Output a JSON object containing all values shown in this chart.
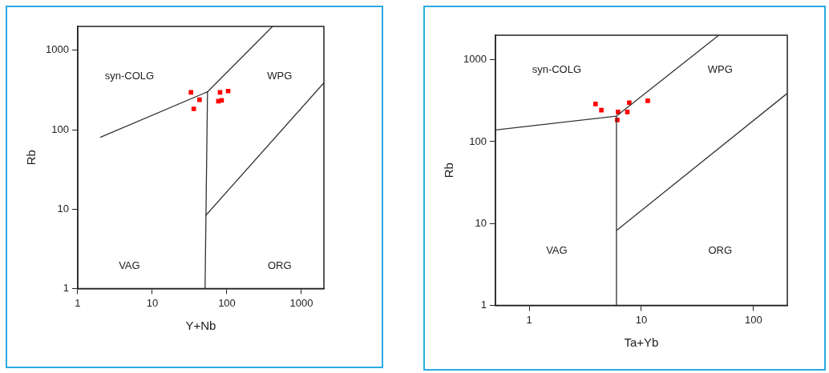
{
  "chart_data": [
    {
      "type": "scatter",
      "xlabel": "Y+Nb",
      "ylabel": "Rb",
      "log": "xy",
      "xlim": [
        1,
        2000
      ],
      "ylim": [
        1,
        2000
      ],
      "xticks": [
        1,
        10,
        100,
        1000
      ],
      "yticks": [
        1,
        10,
        100,
        1000
      ],
      "series": [
        {
          "type": "line",
          "color": "#333333",
          "x": [
            2,
            55,
            410
          ],
          "values": [
            80,
            300,
            2000
          ]
        },
        {
          "type": "line",
          "color": "#333333",
          "x": [
            55,
            51
          ],
          "values": [
            300,
            1
          ]
        },
        {
          "type": "line",
          "color": "#333333",
          "x": [
            52,
            2000
          ],
          "values": [
            8.3,
            390
          ]
        },
        {
          "type": "scatter",
          "marker": "square",
          "color": "#ff0000",
          "x": [
            33,
            43,
            36,
            81,
            77,
            85,
            104
          ],
          "values": [
            295,
            238,
            183,
            295,
            229,
            234,
            307
          ]
        }
      ],
      "annotations": [
        "syn-COLG",
        "WPG",
        "VAG",
        "ORG"
      ]
    },
    {
      "type": "scatter",
      "xlabel": "Ta+Yb",
      "ylabel": "Rb",
      "log": "xy",
      "xlim": [
        0.5,
        200
      ],
      "ylim": [
        1,
        2000
      ],
      "xticks": [
        1,
        10,
        100
      ],
      "yticks": [
        1,
        10,
        100,
        1000
      ],
      "series": [
        {
          "type": "line",
          "color": "#333333",
          "x": [
            0.5,
            6
          ],
          "values": [
            139,
            205
          ]
        },
        {
          "type": "line",
          "color": "#333333",
          "x": [
            6,
            6
          ],
          "values": [
            205,
            1
          ]
        },
        {
          "type": "line",
          "color": "#333333",
          "x": [
            6,
            49
          ],
          "values": [
            205,
            2000
          ]
        },
        {
          "type": "line",
          "color": "#333333",
          "x": [
            6,
            200
          ],
          "values": [
            8.2,
            390
          ]
        },
        {
          "type": "scatter",
          "marker": "square",
          "color": "#ff0000",
          "x": [
            3.9,
            4.4,
            6.2,
            6.1,
            7.5,
            7.8,
            11.4
          ],
          "values": [
            289,
            243,
            231,
            184,
            231,
            300,
            316
          ]
        }
      ],
      "annotations": [
        "syn-COLG",
        "WPG",
        "VAG",
        "ORG"
      ]
    }
  ]
}
